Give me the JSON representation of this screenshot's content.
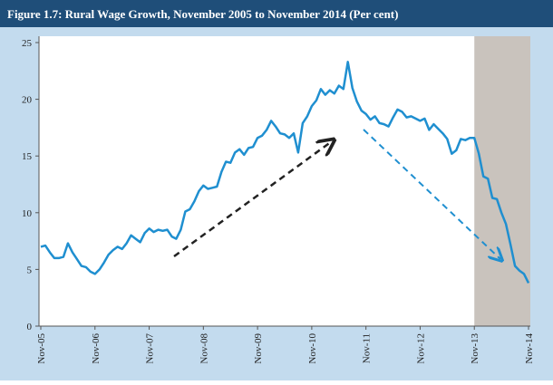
{
  "chart_data": {
    "type": "line",
    "title": "Figure 1.7:  Rural Wage Growth, November 2005 to November 2014 (Per cent)",
    "categories": [
      "Nov-05",
      null,
      null,
      null,
      null,
      null,
      null,
      null,
      null,
      null,
      null,
      null,
      "Nov-06",
      null,
      null,
      null,
      null,
      null,
      null,
      null,
      null,
      null,
      null,
      null,
      "Nov-07",
      null,
      null,
      null,
      null,
      null,
      null,
      null,
      null,
      null,
      null,
      null,
      "Nov-08",
      null,
      null,
      null,
      null,
      null,
      null,
      null,
      null,
      null,
      null,
      null,
      "Nov-09",
      null,
      null,
      null,
      null,
      null,
      null,
      null,
      null,
      null,
      null,
      null,
      "Nov-10",
      null,
      null,
      null,
      null,
      null,
      null,
      null,
      null,
      null,
      null,
      null,
      "Nov-11",
      null,
      null,
      null,
      null,
      null,
      null,
      null,
      null,
      null,
      null,
      null,
      "Nov-12",
      null,
      null,
      null,
      null,
      null,
      null,
      null,
      null,
      null,
      null,
      null,
      "Nov-13",
      null,
      null,
      null,
      null,
      null,
      null,
      null,
      null,
      null,
      null,
      null,
      "Nov-14"
    ],
    "values": [
      7.0,
      7.1,
      6.5,
      6.0,
      6.0,
      6.1,
      7.3,
      6.5,
      5.9,
      5.3,
      5.2,
      4.8,
      4.6,
      5.0,
      5.6,
      6.3,
      6.7,
      7.0,
      6.8,
      7.3,
      8.0,
      7.7,
      7.4,
      8.2,
      8.6,
      8.3,
      8.5,
      8.4,
      8.5,
      7.9,
      7.7,
      8.5,
      10.1,
      10.3,
      11.0,
      11.9,
      12.4,
      12.1,
      12.2,
      12.3,
      13.6,
      14.5,
      14.4,
      15.3,
      15.6,
      15.1,
      15.7,
      15.8,
      16.6,
      16.8,
      17.3,
      18.1,
      17.6,
      17.0,
      16.9,
      16.6,
      17.0,
      15.3,
      17.9,
      18.5,
      19.4,
      19.9,
      20.9,
      20.4,
      20.8,
      20.5,
      21.2,
      20.9,
      23.3,
      21.0,
      19.8,
      19.0,
      18.7,
      18.2,
      18.5,
      17.9,
      17.8,
      17.6,
      18.4,
      19.1,
      18.9,
      18.4,
      18.5,
      18.3,
      18.1,
      18.3,
      17.3,
      17.8,
      17.4,
      17.0,
      16.5,
      15.2,
      15.5,
      16.5,
      16.4,
      16.6,
      16.6,
      15.2,
      13.2,
      13.0,
      11.3,
      11.2,
      10.0,
      9.0,
      7.2,
      5.3,
      4.9,
      4.6,
      3.8
    ],
    "color": "#1f8fd0",
    "highlight": {
      "from": "Nov-13",
      "to": "Nov-14"
    },
    "ylim": [
      0,
      25
    ],
    "yticks": [
      0,
      5,
      10,
      15,
      20,
      25
    ]
  }
}
